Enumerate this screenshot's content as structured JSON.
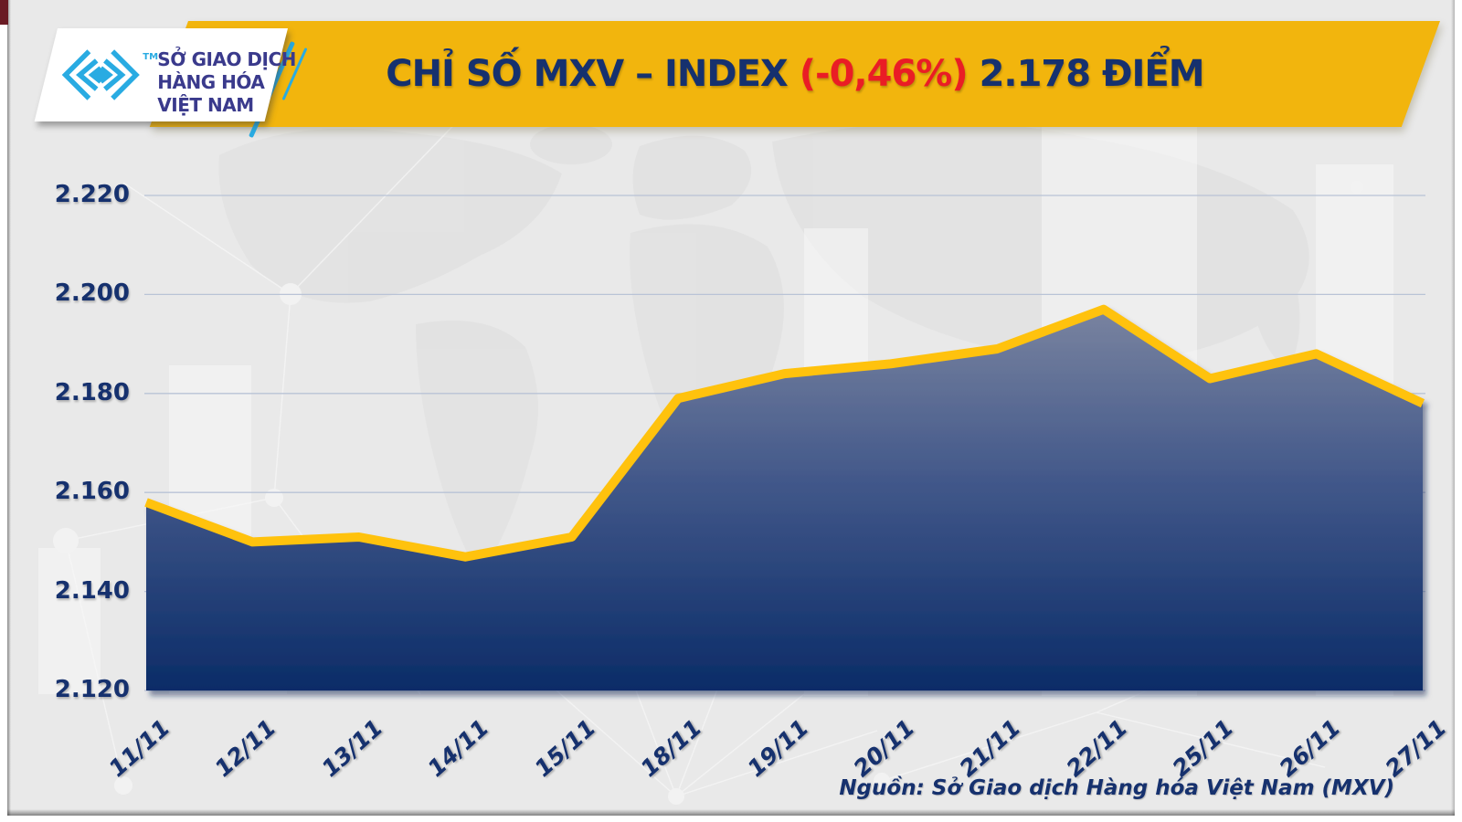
{
  "header": {
    "logo": {
      "org_lines": [
        "SỞ GIAO DỊCH",
        "HÀNG HÓA",
        "VIỆT NAM"
      ],
      "trademark": "TM"
    },
    "banner": {
      "title_prefix": "CHỈ SỐ MXV – INDEX ",
      "change_pct": "(-0,46%)",
      "title_suffix": " 2.178 ĐIỂM"
    }
  },
  "footer": {
    "source": "Nguồn: Sở Giao dịch Hàng hóa Việt Nam (MXV)"
  },
  "chart_data": {
    "type": "area",
    "title": "CHỈ SỐ MXV – INDEX (-0,46%) 2.178 ĐIỂM",
    "categories": [
      "11/11",
      "12/11",
      "13/11",
      "14/11",
      "15/11",
      "18/11",
      "19/11",
      "20/11",
      "21/11",
      "22/11",
      "25/11",
      "26/11",
      "27/11"
    ],
    "values": [
      2.158,
      2.15,
      2.151,
      2.147,
      2.151,
      2.179,
      2.184,
      2.186,
      2.189,
      2.197,
      2.183,
      2.188,
      2.178
    ],
    "last_value_points": "2.178",
    "change_percent": "-0,46%",
    "xlabel": "",
    "ylabel": "",
    "ylim": [
      2.12,
      2.22
    ],
    "ytick_labels": [
      "2.220",
      "2.200",
      "2.180",
      "2.160",
      "2.140",
      "2.120"
    ],
    "grid": true,
    "legend": false
  },
  "colors": {
    "banner_yellow": "#F2B50D",
    "line_yellow": "#FFC20E",
    "navy": "#16316E",
    "red": "#EA1D25",
    "cyan": "#29ABE2",
    "logo_text": "#3A3A8C",
    "grid": "#B9C3D6",
    "background": "#E9E9E9",
    "area_gradient_top": "#7A84A0",
    "area_gradient_mid": "#42588A",
    "area_gradient_bottom": "#0A2B67"
  }
}
